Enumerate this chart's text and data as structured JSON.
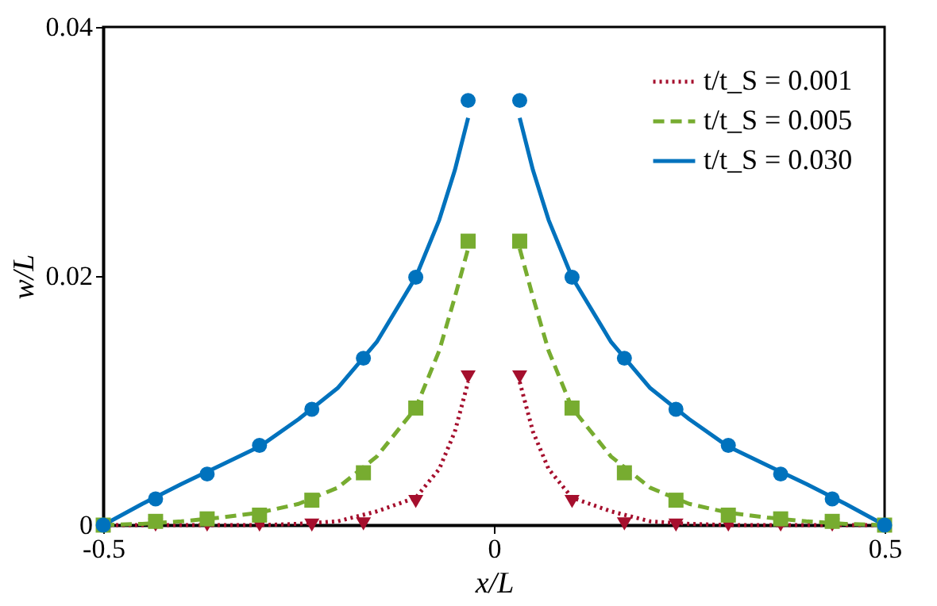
{
  "chart_data": {
    "type": "line",
    "xlabel": "x/L",
    "ylabel": "w/L",
    "xlim": [
      -0.5,
      0.5
    ],
    "xticks": [
      -0.5,
      0,
      0.5
    ],
    "ylim": [
      0,
      0.04
    ],
    "yticks": [
      0,
      0.02,
      0.04
    ],
    "grid": false,
    "legend": "top right",
    "series": [
      {
        "name": "t/t_S = 0.001",
        "color": "#a50f2d",
        "line_style": "dotted",
        "marker": "none",
        "x": [
          -0.5,
          -0.4,
          -0.3,
          -0.25,
          -0.2,
          -0.15,
          -0.1,
          -0.07,
          -0.05,
          -0.033,
          0,
          0.033,
          0.05,
          0.07,
          0.1,
          0.15,
          0.2,
          0.25,
          0.3,
          0.4,
          0.5
        ],
        "values": [
          0,
          0,
          0,
          0.0001,
          0.0003,
          0.0011,
          0.0022,
          0.0045,
          0.0075,
          0.0115,
          null,
          0.0115,
          0.0075,
          0.0045,
          0.0022,
          0.0011,
          0.0003,
          0.0001,
          0,
          0,
          0
        ]
      },
      {
        "name": "t/t_S = 0.005",
        "color": "#77ac30",
        "line_style": "dashed",
        "marker": "none",
        "x": [
          -0.5,
          -0.45,
          -0.4,
          -0.35,
          -0.3,
          -0.25,
          -0.2,
          -0.15,
          -0.1,
          -0.07,
          -0.05,
          -0.033,
          0,
          0.033,
          0.05,
          0.07,
          0.1,
          0.15,
          0.2,
          0.25,
          0.3,
          0.35,
          0.4,
          0.45,
          0.5
        ],
        "values": [
          0,
          0.0001,
          0.0003,
          0.0006,
          0.001,
          0.0017,
          0.003,
          0.0055,
          0.0094,
          0.014,
          0.0183,
          0.0222,
          null,
          0.0222,
          0.0183,
          0.014,
          0.0094,
          0.0055,
          0.003,
          0.0017,
          0.001,
          0.0006,
          0.0003,
          0.0001,
          0
        ]
      },
      {
        "name": "t/t_S = 0.030",
        "color": "#0072bd",
        "line_style": "solid",
        "marker": "none",
        "x": [
          -0.5,
          -0.45,
          -0.4,
          -0.35,
          -0.3,
          -0.25,
          -0.2,
          -0.15,
          -0.1,
          -0.07,
          -0.05,
          -0.033,
          0,
          0.033,
          0.05,
          0.07,
          0.1,
          0.15,
          0.2,
          0.25,
          0.3,
          0.35,
          0.4,
          0.45,
          0.5
        ],
        "values": [
          0,
          0.0017,
          0.0033,
          0.0048,
          0.0063,
          0.0085,
          0.011,
          0.0147,
          0.0199,
          0.0245,
          0.0285,
          0.0327,
          null,
          0.0327,
          0.0285,
          0.0245,
          0.0199,
          0.0147,
          0.011,
          0.0085,
          0.0063,
          0.0048,
          0.0033,
          0.0017,
          0
        ]
      },
      {
        "type": "scatter",
        "color": "#a50f2d",
        "marker": "triangle",
        "x": [
          -0.433,
          -0.367,
          -0.3,
          -0.233,
          -0.167,
          -0.1,
          -0.033,
          0.033,
          0.1,
          0.167,
          0.233,
          0.3,
          0.367,
          0.433
        ],
        "values": [
          0,
          0,
          0,
          0,
          0.0001,
          0.0019,
          0.0119,
          0.0119,
          0.0019,
          0.0001,
          0,
          0,
          0,
          0
        ]
      },
      {
        "type": "scatter",
        "color": "#77ac30",
        "marker": "square",
        "x": [
          -0.5,
          -0.433,
          -0.367,
          -0.3,
          -0.233,
          -0.167,
          -0.1,
          -0.033,
          0.033,
          0.1,
          0.167,
          0.233,
          0.3,
          0.367,
          0.433,
          0.5
        ],
        "values": [
          0,
          0.0003,
          0.0005,
          0.0008,
          0.002,
          0.0042,
          0.0094,
          0.0228,
          0.0228,
          0.0094,
          0.0042,
          0.002,
          0.0008,
          0.0005,
          0.0003,
          0
        ]
      },
      {
        "type": "scatter",
        "color": "#0072bd",
        "marker": "circle",
        "x": [
          -0.5,
          -0.433,
          -0.367,
          -0.3,
          -0.233,
          -0.167,
          -0.1,
          -0.033,
          0.033,
          0.1,
          0.167,
          0.233,
          0.3,
          0.367,
          0.433,
          0.5
        ],
        "values": [
          0,
          0.0021,
          0.0041,
          0.0064,
          0.0093,
          0.0134,
          0.0199,
          0.0341,
          0.0341,
          0.0199,
          0.0134,
          0.0093,
          0.0064,
          0.0041,
          0.0021,
          0
        ]
      }
    ]
  }
}
